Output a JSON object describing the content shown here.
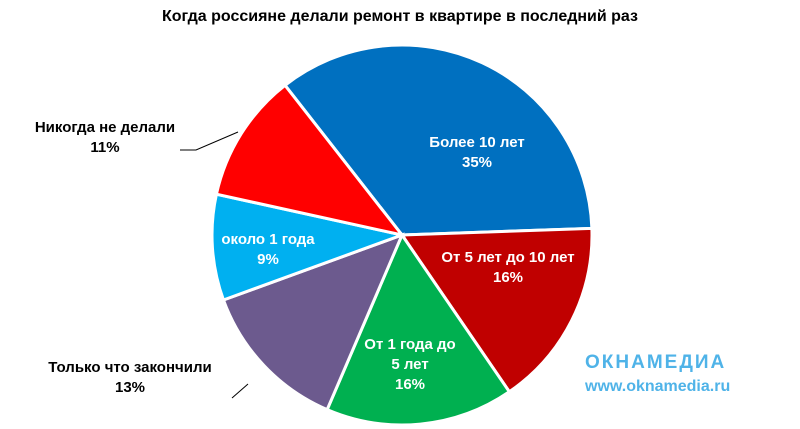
{
  "chart_data": {
    "type": "pie",
    "title": "Когда россияне делали ремонт в квартире в последний раз",
    "categories": [
      "Более 10 лет",
      "От 5 лет до 10 лет",
      "От 1 года до 5 лет",
      "Только что закончили",
      "около 1 года",
      "Никогда не делали"
    ],
    "values": [
      35,
      16,
      16,
      13,
      9,
      11
    ],
    "value_labels": [
      "35%",
      "16%",
      "16%",
      "13%",
      "9%",
      "11%"
    ],
    "colors": [
      "#0070c0",
      "#c00000",
      "#00b050",
      "#6c5a8e",
      "#00b0f0",
      "#ff0000"
    ]
  },
  "watermark": {
    "brand": "ОКНАМЕДИА",
    "url": "www.oknamedia.ru"
  }
}
